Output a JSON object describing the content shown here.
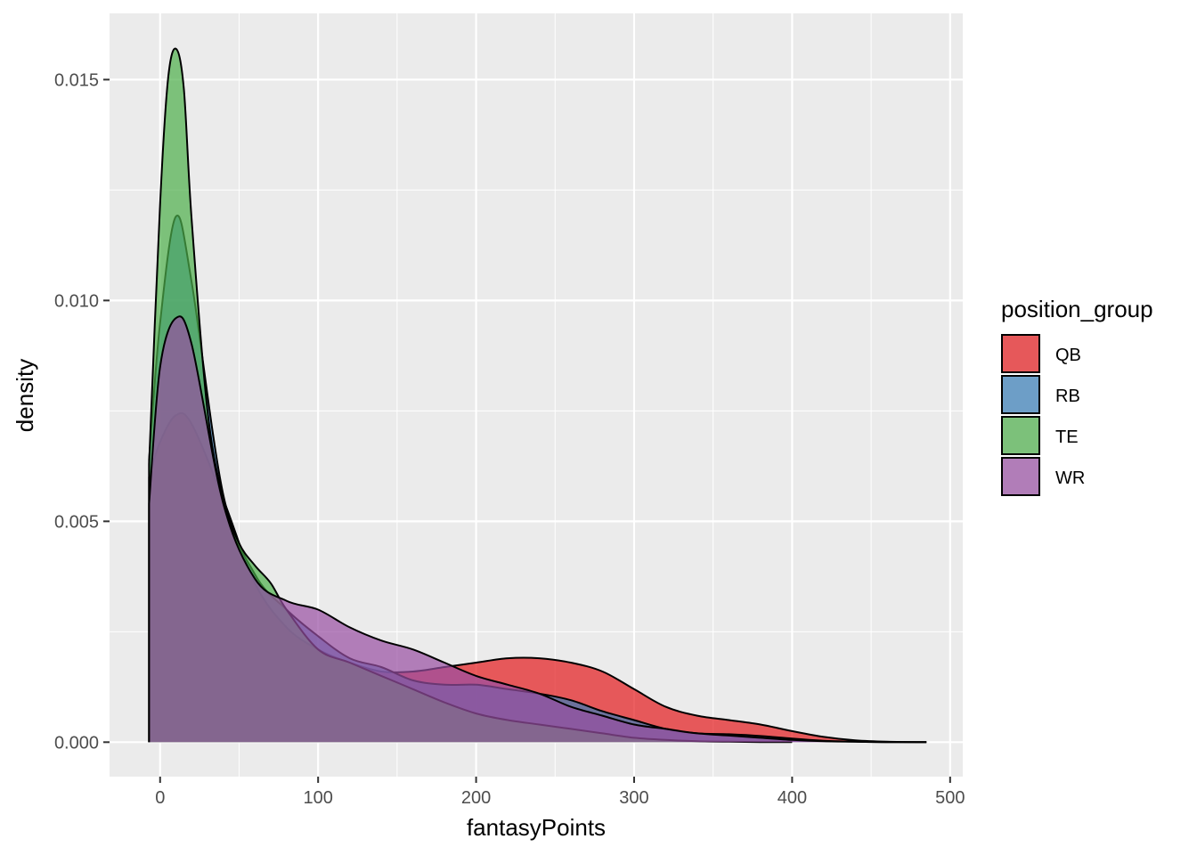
{
  "chart_data": {
    "type": "area",
    "xlabel": "fantasyPoints",
    "ylabel": "density",
    "xlim": [
      -32,
      508
    ],
    "ylim": [
      -0.00078,
      0.0165
    ],
    "x_ticks": [
      0,
      100,
      200,
      300,
      400,
      500
    ],
    "x_tick_labels": [
      "0",
      "100",
      "200",
      "300",
      "400",
      "500"
    ],
    "y_ticks": [
      0.0,
      0.005,
      0.01,
      0.015
    ],
    "y_tick_labels": [
      "0.000",
      "0.005",
      "0.010",
      "0.015"
    ],
    "grid": true,
    "legend": {
      "title": "position_group",
      "position": "right"
    },
    "series": [
      {
        "name": "QB",
        "color": "#E41A1C",
        "x": [
          -7,
          0,
          10,
          20,
          40,
          60,
          80,
          100,
          120,
          140,
          160,
          180,
          200,
          220,
          240,
          260,
          280,
          300,
          320,
          340,
          360,
          380,
          400,
          420,
          440,
          460,
          485
        ],
        "y": [
          0.006,
          0.0068,
          0.0074,
          0.0072,
          0.0055,
          0.0036,
          0.0026,
          0.0021,
          0.0018,
          0.0016,
          0.0016,
          0.0017,
          0.0018,
          0.0019,
          0.0019,
          0.0018,
          0.0016,
          0.0012,
          0.0008,
          0.0006,
          0.0005,
          0.0004,
          0.00025,
          0.00012,
          4e-05,
          1e-05,
          0.0
        ]
      },
      {
        "name": "RB",
        "color": "#377EB8",
        "x": [
          -7,
          0,
          10,
          20,
          40,
          60,
          80,
          100,
          120,
          140,
          160,
          180,
          200,
          220,
          240,
          260,
          280,
          300,
          320,
          340,
          360,
          380,
          400,
          420,
          440,
          460,
          485
        ],
        "y": [
          0.0064,
          0.0095,
          0.0119,
          0.0104,
          0.0056,
          0.0038,
          0.003,
          0.0024,
          0.0019,
          0.0017,
          0.0014,
          0.0013,
          0.0013,
          0.0012,
          0.0011,
          0.00095,
          0.0007,
          0.0005,
          0.0003,
          0.0002,
          0.00018,
          0.00014,
          8e-05,
          3e-05,
          1e-05,
          0.0,
          0.0
        ]
      },
      {
        "name": "TE",
        "color": "#4DAF4A",
        "x": [
          -7,
          0,
          5,
          10,
          15,
          20,
          30,
          40,
          50,
          60,
          70,
          80,
          100,
          120,
          140,
          160,
          180,
          200,
          220,
          240,
          260,
          280,
          300,
          320,
          340,
          360,
          380,
          400
        ],
        "y": [
          0.0063,
          0.0122,
          0.015,
          0.0157,
          0.0148,
          0.0118,
          0.0075,
          0.0055,
          0.0045,
          0.004,
          0.0036,
          0.003,
          0.0021,
          0.0018,
          0.0015,
          0.0012,
          0.0009,
          0.00065,
          0.0005,
          0.0004,
          0.0003,
          0.0002,
          0.0001,
          5e-05,
          2e-05,
          1e-05,
          0.0,
          0.0
        ]
      },
      {
        "name": "WR",
        "color": "#984EA3",
        "x": [
          -7,
          0,
          10,
          20,
          40,
          60,
          80,
          100,
          120,
          140,
          160,
          180,
          200,
          220,
          240,
          260,
          280,
          300,
          320,
          340,
          360,
          380,
          400,
          420,
          440,
          460,
          485
        ],
        "y": [
          0.0054,
          0.0085,
          0.0096,
          0.009,
          0.0054,
          0.0037,
          0.0032,
          0.003,
          0.0026,
          0.0023,
          0.0021,
          0.0018,
          0.0015,
          0.0013,
          0.0011,
          0.0008,
          0.0006,
          0.0004,
          0.0003,
          0.0002,
          0.00015,
          0.0001,
          5e-05,
          2e-05,
          1e-05,
          0.0,
          0.0
        ]
      }
    ]
  }
}
